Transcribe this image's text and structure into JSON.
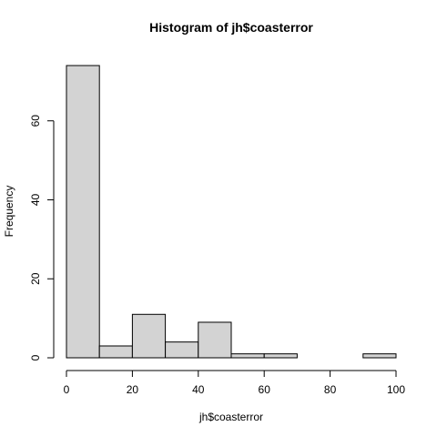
{
  "chart_data": {
    "type": "bar",
    "subtype": "histogram",
    "title": "Histogram of jh$coasterror",
    "xlabel": "jh$coasterror",
    "ylabel": "Frequency",
    "bins": [
      {
        "start": 0,
        "end": 10,
        "count": 74
      },
      {
        "start": 10,
        "end": 20,
        "count": 3
      },
      {
        "start": 20,
        "end": 30,
        "count": 11
      },
      {
        "start": 30,
        "end": 40,
        "count": 4
      },
      {
        "start": 40,
        "end": 50,
        "count": 9
      },
      {
        "start": 50,
        "end": 60,
        "count": 1
      },
      {
        "start": 60,
        "end": 70,
        "count": 1
      },
      {
        "start": 70,
        "end": 80,
        "count": 0
      },
      {
        "start": 80,
        "end": 90,
        "count": 0
      },
      {
        "start": 90,
        "end": 100,
        "count": 1
      }
    ],
    "xlim": [
      0,
      100
    ],
    "ylim": [
      0,
      74
    ],
    "x_ticks": [
      "0",
      "20",
      "40",
      "60",
      "80",
      "100"
    ],
    "y_ticks": [
      "0",
      "20",
      "40",
      "60"
    ],
    "bar_fill": "#d3d3d3",
    "bar_stroke": "#000000",
    "grid": false
  }
}
